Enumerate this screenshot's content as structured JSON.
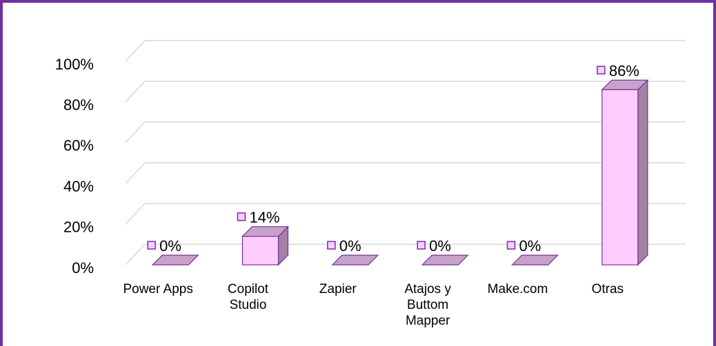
{
  "chart_data": {
    "type": "bar3d",
    "categories": [
      "Power Apps",
      "Copilot Studio",
      "Zapier",
      "Atajos y Buttom Mapper",
      "Make.com",
      "Otras"
    ],
    "values": [
      0,
      14,
      0,
      0,
      0,
      86
    ],
    "value_labels": [
      "0%",
      "14%",
      "0%",
      "0%",
      "0%",
      "86%"
    ],
    "color": "#ffccff",
    "ylim": [
      0,
      100
    ],
    "yticks": [
      {
        "value": 0,
        "label": "0%"
      },
      {
        "value": 20,
        "label": "20%"
      },
      {
        "value": 40,
        "label": "40%"
      },
      {
        "value": 60,
        "label": "60%"
      },
      {
        "value": 80,
        "label": "80%"
      },
      {
        "value": 100,
        "label": "100%"
      }
    ],
    "grid": true
  }
}
